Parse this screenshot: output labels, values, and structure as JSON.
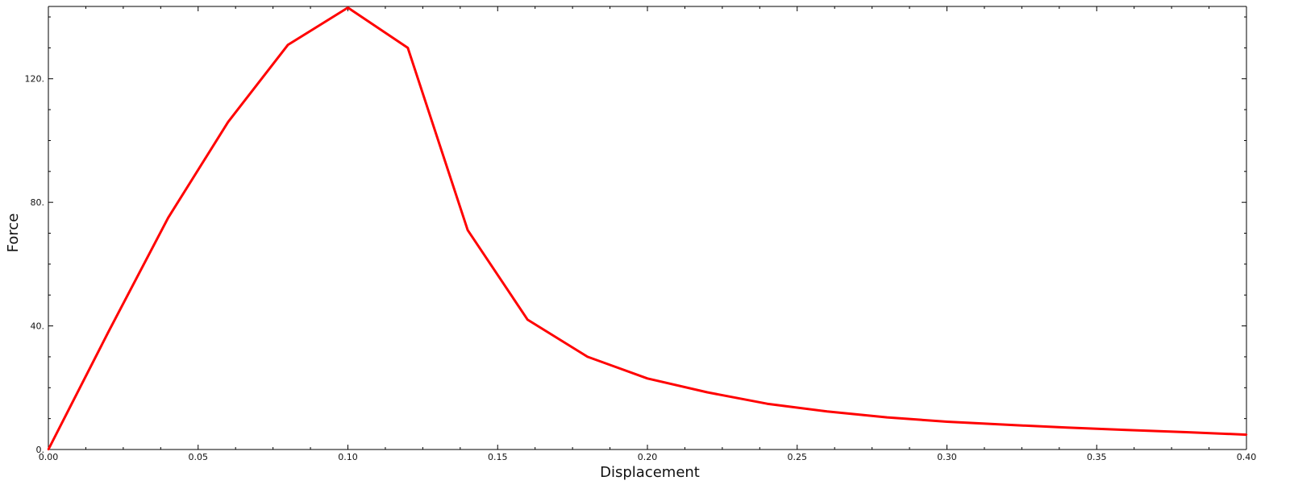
{
  "chart_data": {
    "type": "line",
    "title": "",
    "xlabel": "Displacement",
    "ylabel": "Force",
    "xlim": [
      0.0,
      0.4
    ],
    "ylim": [
      0,
      143.4
    ],
    "x_tick_labels": [
      "0.00",
      "0.05",
      "0.10",
      "0.15",
      "0.20",
      "0.25",
      "0.30",
      "0.35",
      "0.40"
    ],
    "x_tick_values": [
      0.0,
      0.05,
      0.1,
      0.15,
      0.2,
      0.25,
      0.3,
      0.35,
      0.4
    ],
    "y_tick_labels": [
      "0.",
      "40.",
      "80.",
      "120."
    ],
    "y_tick_values": [
      0,
      40,
      80,
      120
    ],
    "grid": false,
    "series": [
      {
        "color": "#ff0000",
        "x": [
          0.0,
          0.02,
          0.04,
          0.06,
          0.08,
          0.1,
          0.12,
          0.14,
          0.16,
          0.18,
          0.2,
          0.22,
          0.24,
          0.26,
          0.28,
          0.3,
          0.32,
          0.34,
          0.36,
          0.38,
          0.4
        ],
        "y": [
          0,
          38,
          75,
          106,
          131,
          143,
          130,
          71,
          42,
          30,
          23,
          18.5,
          14.8,
          12.3,
          10.4,
          9.0,
          8.0,
          7.1,
          6.3,
          5.6,
          4.8
        ]
      }
    ]
  }
}
